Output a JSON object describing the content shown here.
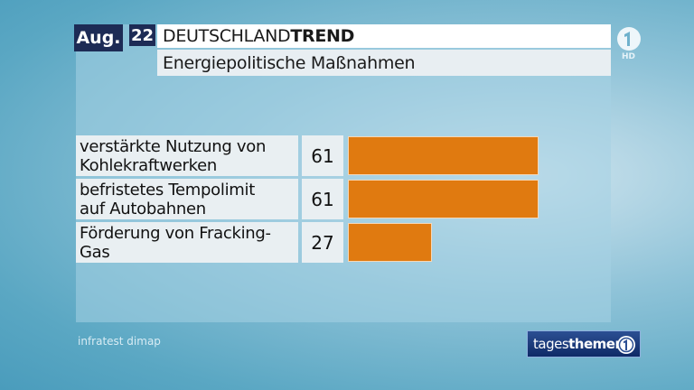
{
  "header": {
    "month": "Aug.",
    "day": "22",
    "title_regular": "DEUTSCHLAND",
    "title_bold": "TREND",
    "subtitle": "Energiepolitische Maßnahmen"
  },
  "branding": {
    "channel_logo": "ard-logo-icon",
    "hd_label": "HD",
    "show_regular": "tages",
    "show_bold": "themen"
  },
  "source": "infratest dimap",
  "colors": {
    "bar": "#e07a10",
    "header_box": "#1d2b55"
  },
  "chart_data": {
    "type": "bar",
    "orientation": "horizontal",
    "categories": [
      [
        "verstärkte Nutzung von",
        "Kohlekraftwerken"
      ],
      [
        "befristetes Tempolimit",
        "auf Autobahnen"
      ],
      [
        "Förderung von Fracking-",
        "Gas"
      ]
    ],
    "values": [
      61,
      61,
      27
    ],
    "value_labels": [
      "61",
      "61",
      "27"
    ],
    "xlim": [
      0,
      100
    ],
    "grid": false,
    "legend": "none"
  }
}
